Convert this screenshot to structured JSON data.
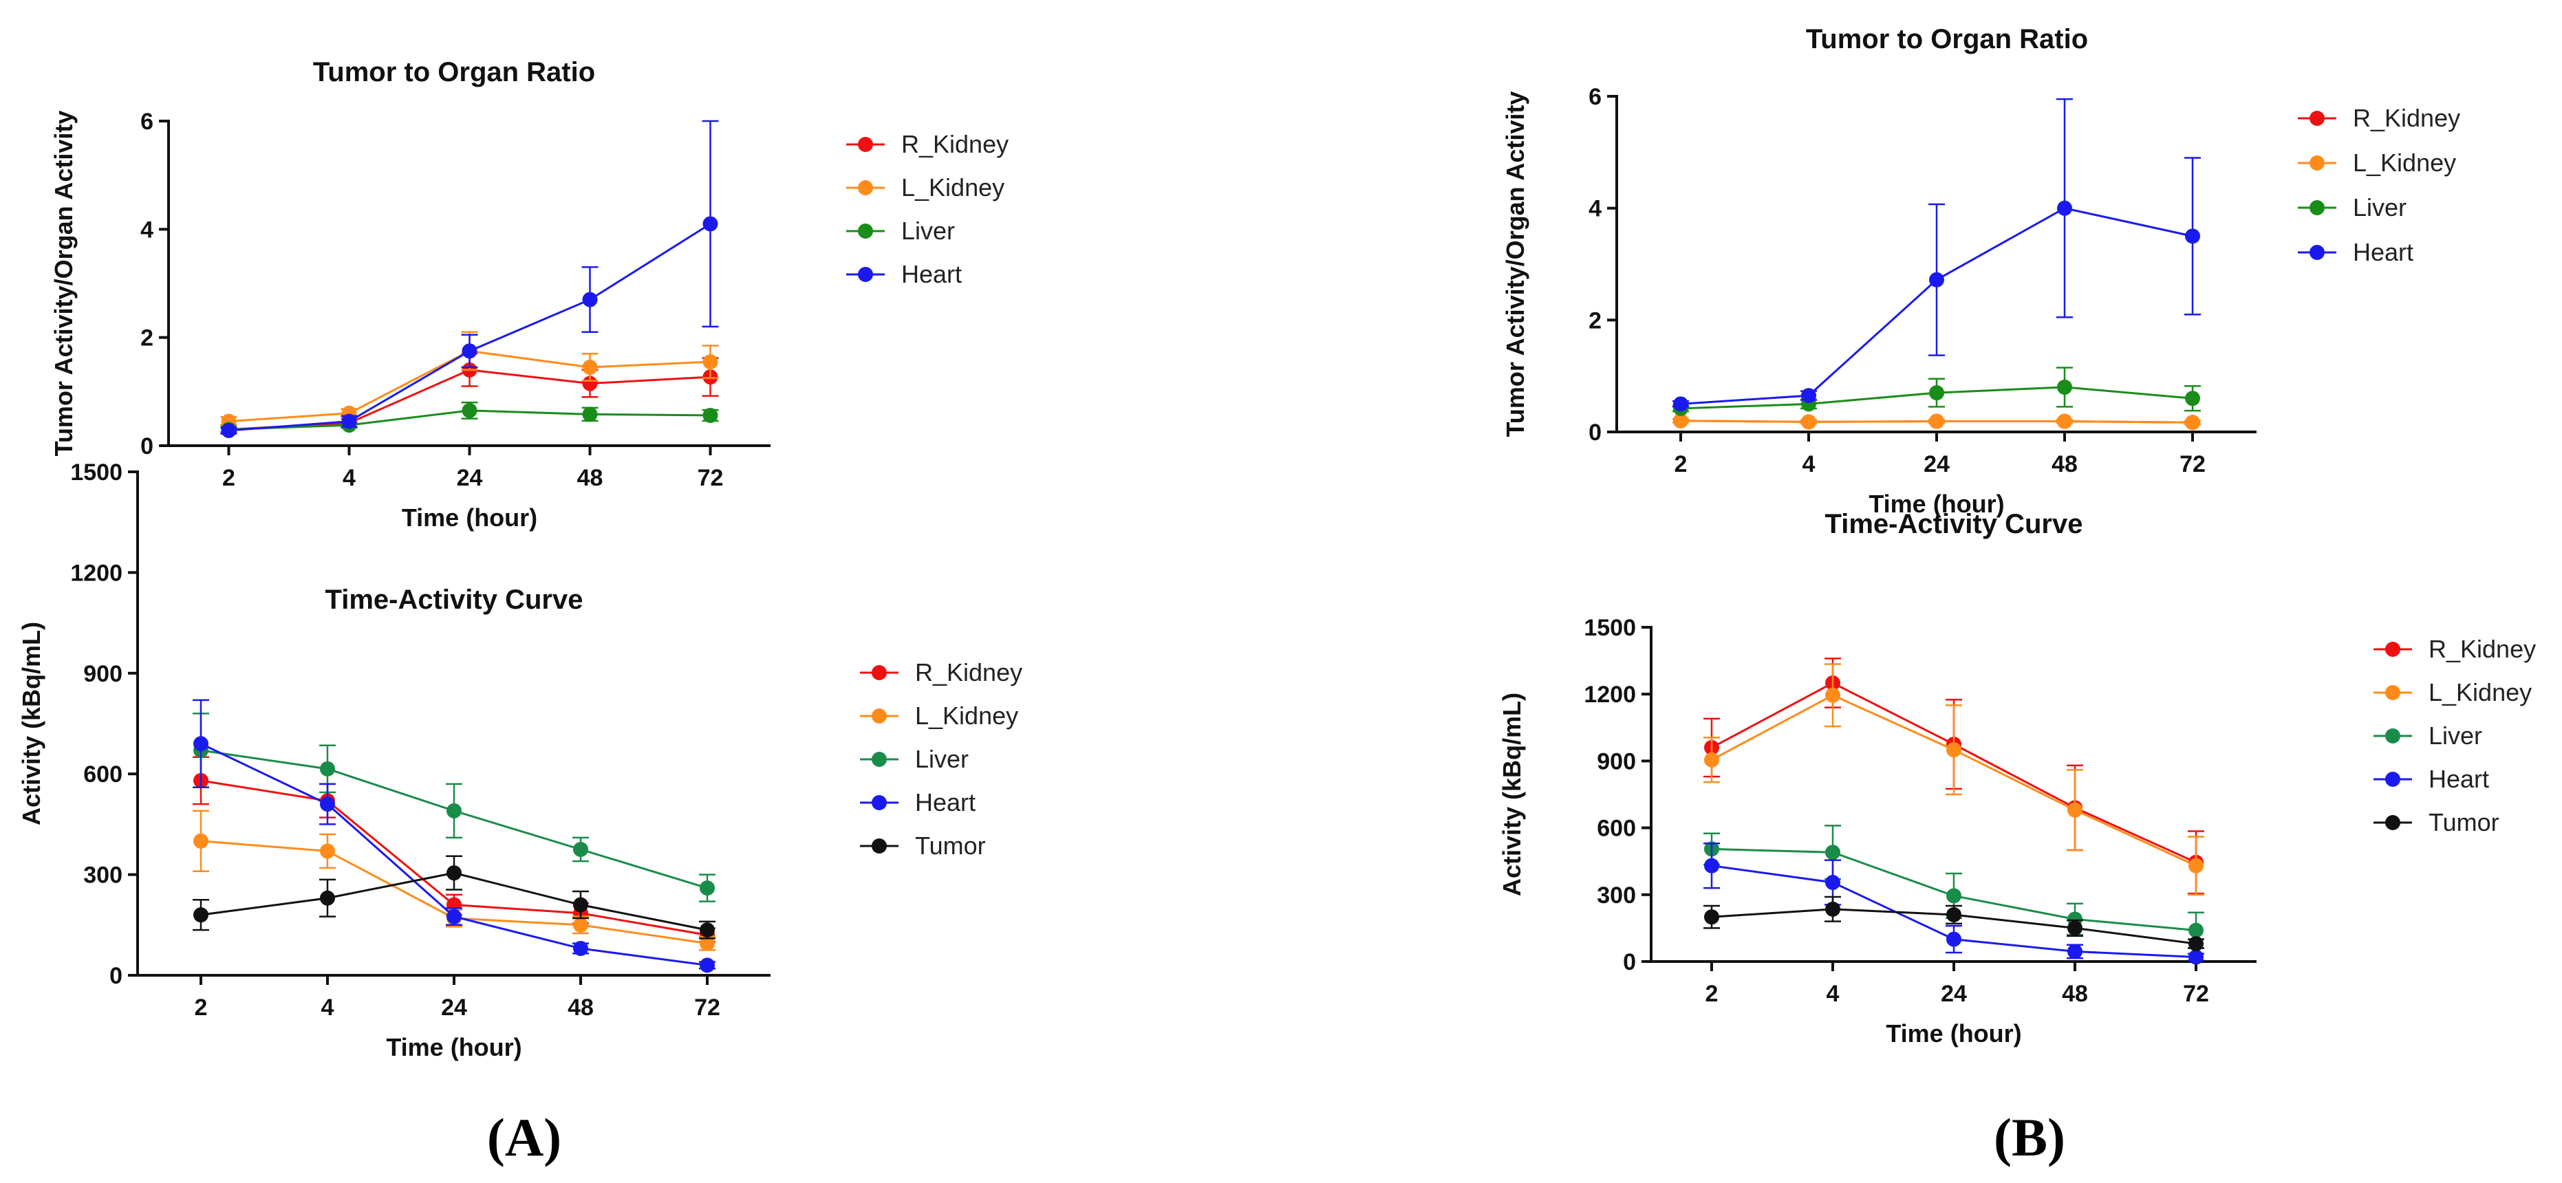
{
  "figure": {
    "panel_a_label": "(A)",
    "panel_b_label": "(B)"
  },
  "chart_data": [
    {
      "id": "A_ratio",
      "type": "line",
      "title": "Tumor to Organ Ratio",
      "xlabel": "Time (hour)",
      "ylabel": "Tumor Activity/Organ Activity",
      "categories": [
        "2",
        "4",
        "24",
        "48",
        "72"
      ],
      "ylim": [
        0,
        6
      ],
      "yticks": [
        0,
        2,
        4,
        6
      ],
      "series": [
        {
          "name": "R_Kidney",
          "color": "#ee1111",
          "values": [
            0.3,
            0.42,
            1.4,
            1.15,
            1.27
          ],
          "errors": [
            0.08,
            0.08,
            0.3,
            0.25,
            0.35
          ]
        },
        {
          "name": "L_Kidney",
          "color": "#ff8c1a",
          "values": [
            0.45,
            0.6,
            1.75,
            1.45,
            1.55
          ],
          "errors": [
            0.08,
            0.08,
            0.35,
            0.25,
            0.3
          ]
        },
        {
          "name": "Liver",
          "color": "#1a8c1a",
          "values": [
            0.3,
            0.38,
            0.65,
            0.58,
            0.56
          ],
          "errors": [
            0.05,
            0.05,
            0.15,
            0.12,
            0.1
          ]
        },
        {
          "name": "Heart",
          "color": "#1a1aee",
          "values": [
            0.28,
            0.45,
            1.75,
            2.7,
            4.1
          ],
          "errors": [
            0.05,
            0.1,
            0.3,
            0.6,
            1.9
          ]
        }
      ]
    },
    {
      "id": "A_tac",
      "type": "line",
      "title": "Time-Activity Curve",
      "xlabel": "Time (hour)",
      "ylabel": "Activity (kBq/mL)",
      "categories": [
        "2",
        "4",
        "24",
        "48",
        "72"
      ],
      "ylim": [
        0,
        1500
      ],
      "yticks": [
        0,
        300,
        600,
        900,
        1200,
        1500
      ],
      "series": [
        {
          "name": "R_Kidney",
          "color": "#ee1111",
          "values": [
            580,
            520,
            210,
            185,
            120
          ],
          "errors": [
            70,
            50,
            30,
            30,
            20
          ]
        },
        {
          "name": "L_Kidney",
          "color": "#ff8c1a",
          "values": [
            400,
            370,
            170,
            150,
            95
          ],
          "errors": [
            90,
            50,
            25,
            25,
            20
          ]
        },
        {
          "name": "Liver",
          "color": "#1a8c4a",
          "values": [
            670,
            615,
            490,
            375,
            260
          ],
          "errors": [
            110,
            70,
            80,
            35,
            40
          ]
        },
        {
          "name": "Heart",
          "color": "#1a1aee",
          "values": [
            690,
            510,
            175,
            80,
            30
          ],
          "errors": [
            130,
            60,
            25,
            15,
            10
          ]
        },
        {
          "name": "Tumor",
          "color": "#111111",
          "values": [
            180,
            230,
            305,
            210,
            135
          ],
          "errors": [
            45,
            55,
            50,
            40,
            25
          ]
        }
      ]
    },
    {
      "id": "B_ratio",
      "type": "line",
      "title": "Tumor to Organ Ratio",
      "xlabel": "Time (hour)",
      "ylabel": "Tumor Activity/Organ Activity",
      "categories": [
        "2",
        "4",
        "24",
        "48",
        "72"
      ],
      "ylim": [
        0,
        6
      ],
      "yticks": [
        0,
        2,
        4,
        6
      ],
      "series": [
        {
          "name": "R_Kidney",
          "color": "#ee1111",
          "values": [
            0.2,
            0.18,
            0.19,
            0.19,
            0.17
          ],
          "errors": [
            0.03,
            0.03,
            0.03,
            0.03,
            0.03
          ]
        },
        {
          "name": "L_Kidney",
          "color": "#ff8c1a",
          "values": [
            0.2,
            0.18,
            0.19,
            0.19,
            0.17
          ],
          "errors": [
            0.03,
            0.03,
            0.03,
            0.03,
            0.03
          ]
        },
        {
          "name": "Liver",
          "color": "#1a8c1a",
          "values": [
            0.42,
            0.5,
            0.7,
            0.8,
            0.6
          ],
          "errors": [
            0.05,
            0.08,
            0.25,
            0.35,
            0.22
          ]
        },
        {
          "name": "Heart",
          "color": "#1a1aee",
          "values": [
            0.5,
            0.65,
            2.72,
            4.0,
            3.5
          ],
          "errors": [
            0.05,
            0.08,
            1.35,
            1.95,
            1.4
          ]
        }
      ]
    },
    {
      "id": "B_tac",
      "type": "line",
      "title": "Time-Activity Curve",
      "xlabel": "Time (hour)",
      "ylabel": "Activity (kBq/mL)",
      "categories": [
        "2",
        "4",
        "24",
        "48",
        "72"
      ],
      "ylim": [
        0,
        1500
      ],
      "yticks": [
        0,
        300,
        600,
        900,
        1200,
        1500
      ],
      "series": [
        {
          "name": "R_Kidney",
          "color": "#ee1111",
          "values": [
            960,
            1250,
            975,
            690,
            445
          ],
          "errors": [
            130,
            110,
            200,
            190,
            140
          ]
        },
        {
          "name": "L_Kidney",
          "color": "#ff8c1a",
          "values": [
            905,
            1195,
            950,
            680,
            430
          ],
          "errors": [
            100,
            140,
            200,
            180,
            130
          ]
        },
        {
          "name": "Liver",
          "color": "#1a8c4a",
          "values": [
            505,
            490,
            295,
            190,
            140
          ],
          "errors": [
            70,
            120,
            100,
            70,
            80
          ]
        },
        {
          "name": "Heart",
          "color": "#1a1aee",
          "values": [
            430,
            355,
            100,
            45,
            20
          ],
          "errors": [
            100,
            100,
            60,
            30,
            15
          ]
        },
        {
          "name": "Tumor",
          "color": "#111111",
          "values": [
            200,
            235,
            210,
            150,
            80
          ],
          "errors": [
            50,
            55,
            40,
            35,
            20
          ]
        }
      ]
    }
  ]
}
